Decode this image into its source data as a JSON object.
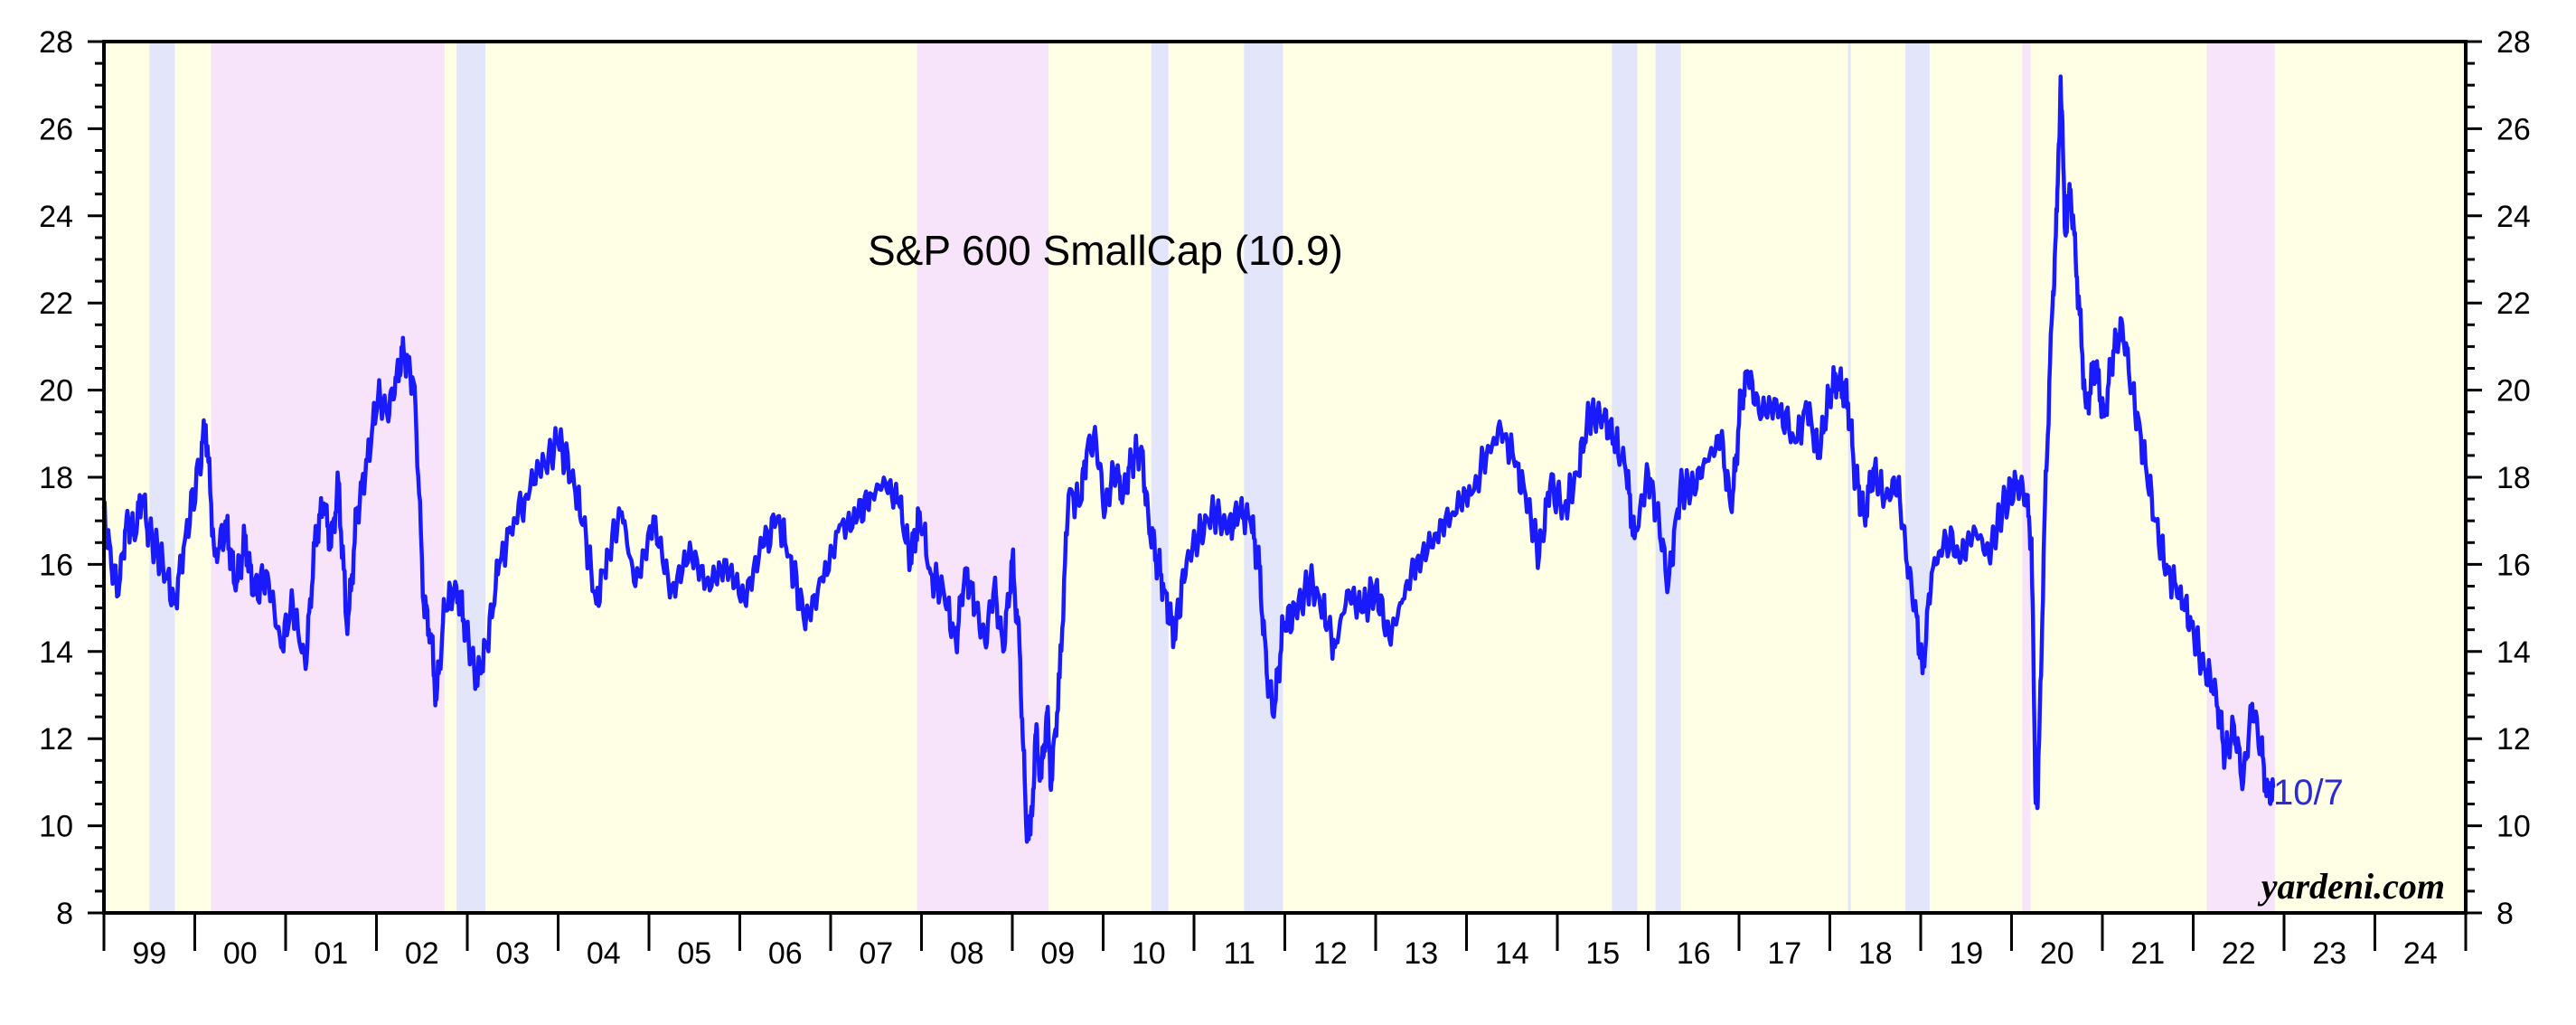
{
  "chart_data": {
    "type": "line",
    "title": "S&P 600 SmallCap (10.9)",
    "ylim": [
      8,
      28
    ],
    "y_ticks": [
      8,
      10,
      12,
      14,
      16,
      18,
      20,
      22,
      24,
      26,
      28
    ],
    "y_minor_step": 0.5,
    "xlim": [
      1998.5,
      2024.5
    ],
    "x_tick_labels": [
      "99",
      "00",
      "01",
      "02",
      "03",
      "04",
      "05",
      "06",
      "07",
      "08",
      "09",
      "10",
      "11",
      "12",
      "13",
      "14",
      "15",
      "16",
      "17",
      "18",
      "19",
      "20",
      "21",
      "22",
      "23",
      "24"
    ],
    "grid": false,
    "end_label": "10/7",
    "source": "yardeni.com",
    "colors": {
      "line": "#1a1aff",
      "end_label": "#2b2bd6",
      "background": "#ffffe6",
      "bear": "#f8e4fa",
      "correction": "#e3e6fb",
      "axis": "#000000"
    },
    "shaded_periods": [
      {
        "start": 1999.0,
        "end": 1999.28,
        "kind": "correction"
      },
      {
        "start": 1999.68,
        "end": 2002.25,
        "kind": "bear"
      },
      {
        "start": 2002.38,
        "end": 2002.7,
        "kind": "correction"
      },
      {
        "start": 2007.45,
        "end": 2008.9,
        "kind": "bear"
      },
      {
        "start": 2010.03,
        "end": 2010.22,
        "kind": "correction"
      },
      {
        "start": 2011.05,
        "end": 2011.48,
        "kind": "correction"
      },
      {
        "start": 2015.1,
        "end": 2015.38,
        "kind": "correction"
      },
      {
        "start": 2015.58,
        "end": 2015.86,
        "kind": "correction"
      },
      {
        "start": 2017.7,
        "end": 2017.73,
        "kind": "correction"
      },
      {
        "start": 2018.33,
        "end": 2018.6,
        "kind": "correction"
      },
      {
        "start": 2019.62,
        "end": 2019.71,
        "kind": "bear"
      },
      {
        "start": 2021.65,
        "end": 2022.4,
        "kind": "bear"
      }
    ],
    "series": [
      {
        "values": [
          [
            1998.5,
            17.3
          ],
          [
            1998.58,
            16.0
          ],
          [
            1998.66,
            15.3
          ],
          [
            1998.75,
            17.1
          ],
          [
            1998.83,
            16.7
          ],
          [
            1998.92,
            17.5
          ],
          [
            1999.0,
            16.7
          ],
          [
            1999.15,
            16.0
          ],
          [
            1999.28,
            15.1
          ],
          [
            1999.4,
            16.7
          ],
          [
            1999.55,
            18.2
          ],
          [
            1999.62,
            19.2
          ],
          [
            1999.72,
            16.2
          ],
          [
            1999.85,
            16.9
          ],
          [
            1999.95,
            15.4
          ],
          [
            2000.05,
            16.6
          ],
          [
            2000.15,
            15.3
          ],
          [
            2000.3,
            15.8
          ],
          [
            2000.45,
            14.1
          ],
          [
            2000.58,
            15.1
          ],
          [
            2000.72,
            13.6
          ],
          [
            2000.82,
            16.5
          ],
          [
            2000.92,
            17.4
          ],
          [
            2001.0,
            16.4
          ],
          [
            2001.08,
            17.9
          ],
          [
            2001.18,
            14.4
          ],
          [
            2001.28,
            17.1
          ],
          [
            2001.4,
            18.4
          ],
          [
            2001.52,
            19.9
          ],
          [
            2001.62,
            19.4
          ],
          [
            2001.72,
            20.3
          ],
          [
            2001.8,
            20.9
          ],
          [
            2001.92,
            20.1
          ],
          [
            2002.02,
            15.1
          ],
          [
            2002.1,
            14.4
          ],
          [
            2002.16,
            12.9
          ],
          [
            2002.25,
            15.0
          ],
          [
            2002.38,
            15.5
          ],
          [
            2002.48,
            14.6
          ],
          [
            2002.6,
            13.3
          ],
          [
            2002.72,
            14.2
          ],
          [
            2002.85,
            16.0
          ],
          [
            2002.98,
            16.8
          ],
          [
            2003.15,
            17.6
          ],
          [
            2003.35,
            18.3
          ],
          [
            2003.5,
            18.8
          ],
          [
            2003.65,
            18.1
          ],
          [
            2003.78,
            16.9
          ],
          [
            2003.92,
            15.1
          ],
          [
            2004.05,
            16.3
          ],
          [
            2004.2,
            17.2
          ],
          [
            2004.35,
            15.5
          ],
          [
            2004.55,
            17.1
          ],
          [
            2004.75,
            15.5
          ],
          [
            2004.95,
            16.5
          ],
          [
            2005.15,
            15.7
          ],
          [
            2005.35,
            16.1
          ],
          [
            2005.55,
            15.2
          ],
          [
            2005.75,
            16.4
          ],
          [
            2005.92,
            17.1
          ],
          [
            2006.05,
            16.2
          ],
          [
            2006.2,
            14.8
          ],
          [
            2006.4,
            15.7
          ],
          [
            2006.6,
            16.9
          ],
          [
            2006.8,
            17.1
          ],
          [
            2006.95,
            17.6
          ],
          [
            2007.1,
            17.9
          ],
          [
            2007.25,
            17.4
          ],
          [
            2007.38,
            16.1
          ],
          [
            2007.48,
            17.2
          ],
          [
            2007.6,
            15.8
          ],
          [
            2007.75,
            15.3
          ],
          [
            2007.88,
            14.2
          ],
          [
            2007.98,
            15.9
          ],
          [
            2008.1,
            15.0
          ],
          [
            2008.2,
            14.2
          ],
          [
            2008.3,
            15.5
          ],
          [
            2008.4,
            14.0
          ],
          [
            2008.5,
            16.1
          ],
          [
            2008.58,
            14.1
          ],
          [
            2008.65,
            10.1
          ],
          [
            2008.7,
            9.8
          ],
          [
            2008.76,
            12.1
          ],
          [
            2008.82,
            11.1
          ],
          [
            2008.88,
            12.6
          ],
          [
            2008.93,
            11.0
          ],
          [
            2009.02,
            13.4
          ],
          [
            2009.12,
            17.6
          ],
          [
            2009.25,
            17.4
          ],
          [
            2009.32,
            18.6
          ],
          [
            2009.42,
            18.9
          ],
          [
            2009.52,
            17.2
          ],
          [
            2009.62,
            18.2
          ],
          [
            2009.72,
            17.6
          ],
          [
            2009.82,
            18.4
          ],
          [
            2009.92,
            18.7
          ],
          [
            2010.0,
            17.0
          ],
          [
            2010.08,
            16.2
          ],
          [
            2010.18,
            15.4
          ],
          [
            2010.28,
            14.3
          ],
          [
            2010.42,
            16.1
          ],
          [
            2010.58,
            16.8
          ],
          [
            2010.72,
            17.2
          ],
          [
            2010.88,
            16.8
          ],
          [
            2011.0,
            17.2
          ],
          [
            2011.12,
            17.0
          ],
          [
            2011.22,
            15.9
          ],
          [
            2011.3,
            13.5
          ],
          [
            2011.38,
            12.5
          ],
          [
            2011.48,
            14.6
          ],
          [
            2011.62,
            14.9
          ],
          [
            2011.78,
            15.6
          ],
          [
            2011.92,
            15.0
          ],
          [
            2012.05,
            14.1
          ],
          [
            2012.2,
            15.4
          ],
          [
            2012.35,
            14.9
          ],
          [
            2012.5,
            15.5
          ],
          [
            2012.65,
            14.3
          ],
          [
            2012.8,
            15.2
          ],
          [
            2012.95,
            16.1
          ],
          [
            2013.15,
            16.7
          ],
          [
            2013.35,
            17.2
          ],
          [
            2013.55,
            17.6
          ],
          [
            2013.72,
            18.5
          ],
          [
            2013.88,
            19.1
          ],
          [
            2014.02,
            18.4
          ],
          [
            2014.15,
            17.6
          ],
          [
            2014.3,
            16.2
          ],
          [
            2014.42,
            17.8
          ],
          [
            2014.58,
            17.3
          ],
          [
            2014.72,
            18.1
          ],
          [
            2014.85,
            19.4
          ],
          [
            2015.0,
            19.4
          ],
          [
            2015.12,
            18.9
          ],
          [
            2015.25,
            18.2
          ],
          [
            2015.35,
            16.6
          ],
          [
            2015.5,
            18.1
          ],
          [
            2015.62,
            17.0
          ],
          [
            2015.72,
            15.5
          ],
          [
            2015.85,
            17.7
          ],
          [
            2016.0,
            17.8
          ],
          [
            2016.15,
            18.4
          ],
          [
            2016.3,
            18.9
          ],
          [
            2016.42,
            17.2
          ],
          [
            2016.52,
            19.8
          ],
          [
            2016.6,
            20.3
          ],
          [
            2016.75,
            19.4
          ],
          [
            2016.95,
            19.6
          ],
          [
            2017.12,
            18.8
          ],
          [
            2017.25,
            19.6
          ],
          [
            2017.38,
            18.5
          ],
          [
            2017.5,
            20.0
          ],
          [
            2017.6,
            20.3
          ],
          [
            2017.7,
            19.7
          ],
          [
            2017.78,
            18.0
          ],
          [
            2017.88,
            17.1
          ],
          [
            2017.98,
            18.2
          ],
          [
            2018.1,
            17.5
          ],
          [
            2018.25,
            17.9
          ],
          [
            2018.35,
            16.0
          ],
          [
            2018.45,
            14.9
          ],
          [
            2018.52,
            13.5
          ],
          [
            2018.62,
            15.8
          ],
          [
            2018.78,
            16.6
          ],
          [
            2018.95,
            16.2
          ],
          [
            2019.1,
            16.8
          ],
          [
            2019.25,
            16.2
          ],
          [
            2019.4,
            17.3
          ],
          [
            2019.55,
            17.9
          ],
          [
            2019.65,
            17.6
          ],
          [
            2019.72,
            16.6
          ],
          [
            2019.76,
            11.0
          ],
          [
            2019.79,
            10.6
          ],
          [
            2019.86,
            16.8
          ],
          [
            2019.94,
            21.5
          ],
          [
            2020.0,
            24.1
          ],
          [
            2020.04,
            27.2
          ],
          [
            2020.09,
            23.6
          ],
          [
            2020.15,
            24.6
          ],
          [
            2020.22,
            22.6
          ],
          [
            2020.32,
            19.6
          ],
          [
            2020.42,
            20.6
          ],
          [
            2020.52,
            19.4
          ],
          [
            2020.62,
            20.9
          ],
          [
            2020.72,
            21.5
          ],
          [
            2020.82,
            20.1
          ],
          [
            2020.95,
            18.6
          ],
          [
            2021.08,
            17.0
          ],
          [
            2021.22,
            15.8
          ],
          [
            2021.35,
            15.4
          ],
          [
            2021.48,
            14.6
          ],
          [
            2021.62,
            13.6
          ],
          [
            2021.75,
            13.1
          ],
          [
            2021.85,
            11.6
          ],
          [
            2021.95,
            12.3
          ],
          [
            2022.05,
            11.0
          ],
          [
            2022.15,
            12.8
          ],
          [
            2022.25,
            11.7
          ],
          [
            2022.32,
            10.7
          ],
          [
            2022.38,
            10.9
          ]
        ]
      }
    ]
  }
}
